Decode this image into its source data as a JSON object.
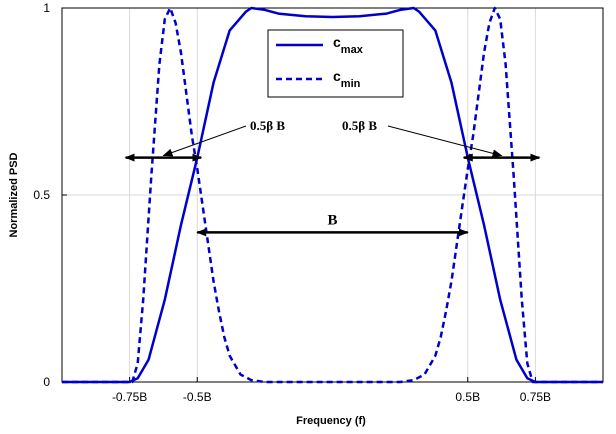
{
  "chart_data": {
    "type": "line",
    "xlabel": "Frequency (f)",
    "ylabel": "Normalized PSD",
    "xlim": [
      -1,
      1
    ],
    "ylim": [
      0,
      1
    ],
    "xticks": [
      {
        "value": -0.75,
        "label": "-0.75B"
      },
      {
        "value": -0.5,
        "label": "-0.5B"
      },
      {
        "value": 0.5,
        "label": "0.5B"
      },
      {
        "value": 0.75,
        "label": "0.75B"
      }
    ],
    "yticks": [
      {
        "value": 0,
        "label": "0"
      },
      {
        "value": 0.5,
        "label": "0.5"
      },
      {
        "value": 1,
        "label": "1"
      }
    ],
    "grid": true,
    "legend_position": "top-center",
    "series": [
      {
        "name": "c",
        "subscript": "max",
        "style": "solid",
        "color": "#0000cc",
        "x": [
          -1.0,
          -0.75,
          -0.72,
          -0.68,
          -0.62,
          -0.56,
          -0.5,
          -0.44,
          -0.38,
          -0.32,
          -0.3,
          -0.25,
          -0.2,
          -0.1,
          0.0,
          0.1,
          0.2,
          0.25,
          0.3,
          0.32,
          0.38,
          0.44,
          0.5,
          0.56,
          0.62,
          0.68,
          0.72,
          0.75,
          1.0
        ],
        "y": [
          0,
          0,
          0.01,
          0.06,
          0.22,
          0.42,
          0.6,
          0.8,
          0.94,
          0.99,
          1.0,
          0.995,
          0.985,
          0.978,
          0.976,
          0.978,
          0.985,
          0.995,
          1.0,
          0.99,
          0.94,
          0.8,
          0.6,
          0.42,
          0.22,
          0.06,
          0.01,
          0,
          0
        ]
      },
      {
        "name": "c",
        "subscript": "min",
        "style": "dashed",
        "color": "#0000cc",
        "x": [
          -1.0,
          -0.74,
          -0.72,
          -0.7,
          -0.67,
          -0.64,
          -0.62,
          -0.6,
          -0.58,
          -0.56,
          -0.54,
          -0.52,
          -0.5,
          -0.48,
          -0.46,
          -0.44,
          -0.42,
          -0.4,
          -0.38,
          -0.34,
          -0.3,
          -0.25,
          -0.2,
          -0.1,
          0.0,
          0.1,
          0.2,
          0.25,
          0.3,
          0.34,
          0.38,
          0.4,
          0.42,
          0.44,
          0.46,
          0.48,
          0.5,
          0.52,
          0.54,
          0.56,
          0.58,
          0.6,
          0.62,
          0.64,
          0.67,
          0.7,
          0.72,
          0.74,
          1.0
        ],
        "y": [
          0,
          0,
          0.05,
          0.22,
          0.55,
          0.85,
          0.97,
          1.0,
          0.96,
          0.88,
          0.77,
          0.66,
          0.57,
          0.47,
          0.37,
          0.27,
          0.19,
          0.12,
          0.07,
          0.02,
          0.005,
          0,
          0,
          0,
          0,
          0,
          0,
          0,
          0.005,
          0.02,
          0.07,
          0.12,
          0.19,
          0.27,
          0.37,
          0.47,
          0.57,
          0.66,
          0.77,
          0.88,
          0.96,
          1.0,
          0.97,
          0.85,
          0.55,
          0.22,
          0.05,
          0,
          0
        ]
      }
    ],
    "annotations": [
      {
        "text": "B",
        "from": -0.5,
        "to": 0.5,
        "y": 0.4
      },
      {
        "text": "0.5β B",
        "from": -0.75,
        "to": -0.5,
        "y": 0.6,
        "label_side": "left"
      },
      {
        "text": "0.5β B",
        "from": 0.5,
        "to": 0.75,
        "y": 0.6,
        "label_side": "right"
      }
    ]
  }
}
